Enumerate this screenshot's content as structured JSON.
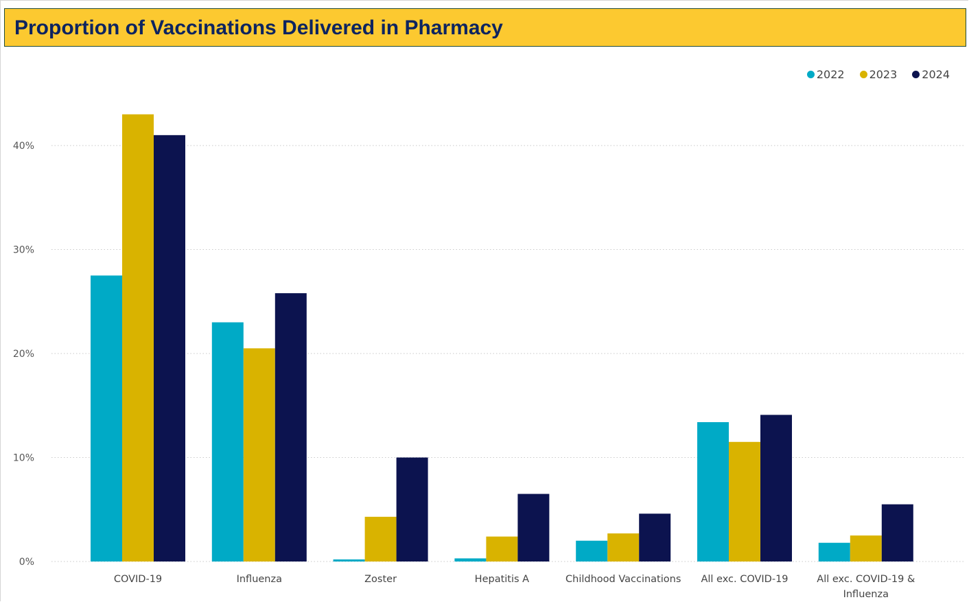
{
  "title": "Proportion of Vaccinations Delivered in Pharmacy",
  "colors": {
    "title_bg": "#fcc930",
    "title_text": "#0d2460",
    "2022": "#00aac6",
    "2023": "#d9b300",
    "2024": "#0c134f"
  },
  "chart_data": {
    "type": "bar",
    "title": "Proportion of Vaccinations Delivered in Pharmacy",
    "categories": [
      "COVID-19",
      "Influenza",
      "Zoster",
      "Hepatitis A",
      "Childhood Vaccinations",
      "All exc. COVID-19",
      "All exc. COVID-19 & Influenza"
    ],
    "category_lines": [
      [
        "COVID-19"
      ],
      [
        "Influenza"
      ],
      [
        "Zoster"
      ],
      [
        "Hepatitis A"
      ],
      [
        "Childhood Vaccinations"
      ],
      [
        "All exc. COVID-19"
      ],
      [
        "All exc. COVID-19 &",
        "Influenza"
      ]
    ],
    "series": [
      {
        "name": "2022",
        "values": [
          27.5,
          23.0,
          0.2,
          0.3,
          2.0,
          13.4,
          1.8
        ]
      },
      {
        "name": "2023",
        "values": [
          43.0,
          20.5,
          4.3,
          2.4,
          2.7,
          11.5,
          2.5
        ]
      },
      {
        "name": "2024",
        "values": [
          41.0,
          25.8,
          10.0,
          6.5,
          4.6,
          14.1,
          5.5
        ]
      }
    ],
    "yticks": [
      0,
      10,
      20,
      30,
      40
    ],
    "ytick_labels": [
      "0%",
      "10%",
      "20%",
      "30%",
      "40%"
    ],
    "ylim": [
      0,
      45
    ],
    "grid": true,
    "legend_position": "top-right",
    "xlabel": "",
    "ylabel": ""
  }
}
